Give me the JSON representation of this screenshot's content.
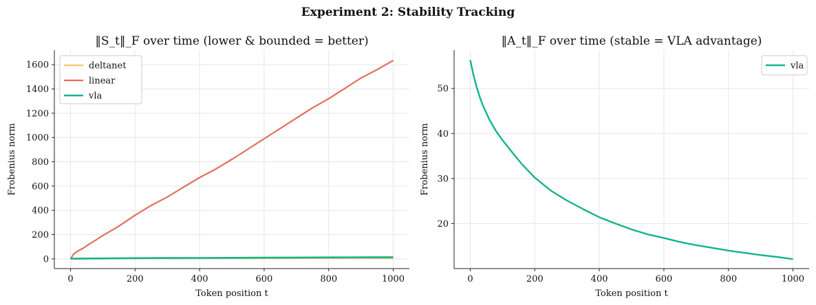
{
  "figure": {
    "suptitle": "Experiment 2: Stability Tracking"
  },
  "chart_data": [
    {
      "type": "line",
      "title": "‖S_t‖_F over time  (lower & bounded = better)",
      "xlabel": "Token position t",
      "ylabel": "Frobenius norm",
      "xlim": [
        -50,
        1050
      ],
      "ylim": [
        -80,
        1720
      ],
      "xticks": [
        0,
        200,
        400,
        600,
        800,
        1000
      ],
      "yticks": [
        0,
        200,
        400,
        600,
        800,
        1000,
        1200,
        1400,
        1600
      ],
      "grid": true,
      "legend_position": "top-left",
      "series": [
        {
          "name": "deltanet",
          "color": "#f7c56b",
          "width": 2.2,
          "x": [
            0,
            100,
            200,
            300,
            400,
            500,
            600,
            700,
            800,
            900,
            1000
          ],
          "values": [
            0,
            2,
            3,
            3,
            4,
            4,
            4,
            5,
            5,
            5,
            5
          ]
        },
        {
          "name": "linear",
          "color": "#e07058",
          "width": 2.2,
          "x": [
            0,
            10,
            20,
            40,
            60,
            80,
            100,
            150,
            200,
            250,
            300,
            350,
            400,
            450,
            500,
            550,
            600,
            650,
            700,
            750,
            800,
            850,
            900,
            950,
            1000
          ],
          "values": [
            0,
            40,
            60,
            90,
            125,
            158,
            192,
            270,
            360,
            440,
            510,
            590,
            670,
            740,
            820,
            905,
            990,
            1075,
            1160,
            1245,
            1320,
            1405,
            1490,
            1560,
            1635
          ]
        },
        {
          "name": "vla",
          "color": "#13b38e",
          "width": 2.6,
          "x": [
            0,
            100,
            200,
            300,
            400,
            500,
            600,
            700,
            800,
            900,
            1000
          ],
          "values": [
            2,
            4,
            6,
            7,
            8,
            9,
            10,
            11,
            12,
            13,
            14
          ]
        }
      ]
    },
    {
      "type": "line",
      "title": "‖A_t‖_F over time  (stable = VLA advantage)",
      "xlabel": "Token position t",
      "ylabel": "Frobenius norm",
      "xlim": [
        -50,
        1050
      ],
      "ylim": [
        10,
        58.5
      ],
      "xticks": [
        0,
        200,
        400,
        600,
        800,
        1000
      ],
      "yticks": [
        20,
        30,
        40,
        50
      ],
      "grid": true,
      "legend_position": "top-right",
      "series": [
        {
          "name": "vla",
          "color": "#13b38e",
          "width": 2.4,
          "x": [
            0,
            10,
            20,
            30,
            40,
            60,
            80,
            100,
            130,
            160,
            200,
            250,
            300,
            350,
            400,
            450,
            500,
            550,
            600,
            650,
            700,
            750,
            800,
            850,
            900,
            950,
            1000
          ],
          "values": [
            56.3,
            53.0,
            50.3,
            48.0,
            46.1,
            43.0,
            40.5,
            38.5,
            35.8,
            33.2,
            30.2,
            27.3,
            25.1,
            23.2,
            21.4,
            20.0,
            18.7,
            17.6,
            16.8,
            15.9,
            15.2,
            14.6,
            14.0,
            13.5,
            13.0,
            12.6,
            12.1
          ]
        }
      ]
    }
  ]
}
